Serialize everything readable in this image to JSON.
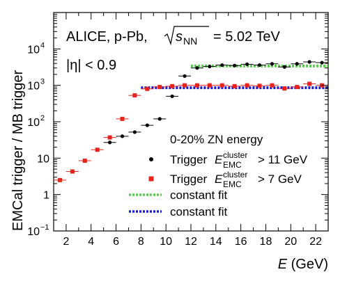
{
  "chart_data": {
    "type": "scatter",
    "xlabel": "E (GeV)",
    "ylabel": "EMCal trigger / MB trigger",
    "xlim": [
      1,
      23
    ],
    "ylim": [
      0.1,
      100000
    ],
    "yscale": "log",
    "x_ticks": [
      2,
      4,
      6,
      8,
      10,
      12,
      14,
      16,
      18,
      20,
      22
    ],
    "y_ticks": [
      {
        "value": 0.1,
        "label_base": "10",
        "label_exp": "−1"
      },
      {
        "value": 1,
        "label_base": "1",
        "label_exp": ""
      },
      {
        "value": 10,
        "label_base": "10",
        "label_exp": ""
      },
      {
        "value": 100,
        "label_base": "10",
        "label_exp": "2"
      },
      {
        "value": 1000,
        "label_base": "10",
        "label_exp": "3"
      },
      {
        "value": 10000,
        "label_base": "10",
        "label_exp": "4"
      }
    ],
    "annotations": {
      "line1_prefix": "ALICE, p-Pb,",
      "line1_sqrt_s": "s",
      "line1_sub": "NN",
      "line1_suffix": "= 5.02 TeV",
      "line2_eta": "|η| < 0.9"
    },
    "legend": {
      "header": "0-20% ZN energy",
      "trigger_prefix": "Trigger",
      "e_symbol": "E",
      "sup": "cluster",
      "sub": "EMC",
      "threshold_11": "> 11 GeV",
      "threshold_7": "> 7 GeV",
      "constant_fit": "constant fit"
    },
    "series": [
      {
        "name": "Trigger E_EMC^cluster > 11 GeV",
        "color": "#000000",
        "marker": "circle",
        "x": [
          5.5,
          6.5,
          7.5,
          8.5,
          9.5,
          10.5,
          11.5,
          12.5,
          13.5,
          14.5,
          15.5,
          16.5,
          17.5,
          18.5,
          19.5,
          20.5,
          21.5,
          22.5
        ],
        "y": [
          27,
          40,
          52,
          80,
          120,
          500,
          1800,
          3000,
          3300,
          3600,
          3500,
          3800,
          3600,
          3900,
          3200,
          3900,
          4400,
          4200
        ],
        "xerr": 0.5
      },
      {
        "name": "Trigger E_EMC^cluster > 7 GeV",
        "color": "#e8231c",
        "marker": "square",
        "x": [
          1.5,
          2.5,
          3.5,
          4.5,
          5.5,
          6.5,
          7.5,
          8.5,
          9.5,
          10.5,
          11.5,
          12.5,
          13.5,
          14.5,
          15.5,
          16.5,
          17.5,
          18.5,
          19.5,
          20.5,
          21.5,
          22.5
        ],
        "y": [
          2.5,
          4.3,
          8.5,
          17,
          37,
          120,
          530,
          800,
          900,
          950,
          1000,
          1000,
          1000,
          1000,
          950,
          1000,
          970,
          1000,
          820,
          900,
          1100,
          1000
        ],
        "xerr": 0.5
      }
    ],
    "fits": [
      {
        "name": "constant fit (> 11 GeV)",
        "color": "#58cf4c",
        "x_range": [
          12,
          23
        ],
        "y": 3400
      },
      {
        "name": "constant fit (> 7 GeV)",
        "color": "#1a1ad6",
        "x_range": [
          8,
          23
        ],
        "y": 860
      }
    ]
  }
}
